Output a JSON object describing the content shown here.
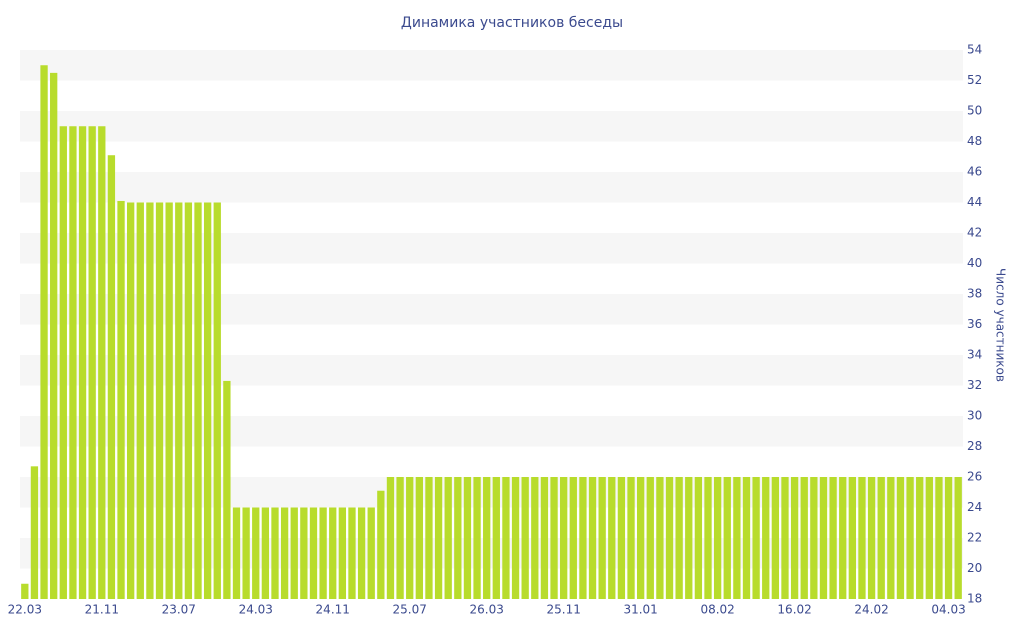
{
  "chart_data": {
    "type": "bar",
    "title": "Динамика участников беседы",
    "ylabel": "Число участников",
    "axis_side": "right",
    "grid": true,
    "color": "#b8dc2c",
    "ylim": [
      18,
      54
    ],
    "yticks": [
      18,
      20,
      22,
      24,
      26,
      28,
      30,
      32,
      34,
      36,
      38,
      40,
      42,
      44,
      46,
      48,
      50,
      52,
      54
    ],
    "categories": [
      "22.03",
      null,
      null,
      null,
      null,
      null,
      null,
      null,
      "21.11",
      null,
      null,
      null,
      null,
      null,
      null,
      null,
      "23.07",
      null,
      null,
      null,
      null,
      null,
      null,
      null,
      "24.03",
      null,
      null,
      null,
      null,
      null,
      null,
      null,
      "24.11",
      null,
      null,
      null,
      null,
      null,
      null,
      null,
      "25.07",
      null,
      null,
      null,
      null,
      null,
      null,
      null,
      "26.03",
      null,
      null,
      null,
      null,
      null,
      null,
      null,
      "25.11",
      null,
      null,
      null,
      null,
      null,
      null,
      null,
      "31.01",
      null,
      null,
      null,
      null,
      null,
      null,
      null,
      "08.02",
      null,
      null,
      null,
      null,
      null,
      null,
      null,
      "16.02",
      null,
      null,
      null,
      null,
      null,
      null,
      null,
      "24.02",
      null,
      null,
      null,
      null,
      null,
      null,
      null,
      "04.03",
      null
    ],
    "values": [
      19,
      26.7,
      53,
      52.5,
      49,
      49,
      49,
      49,
      49,
      47.1,
      44.1,
      44,
      44,
      44,
      44,
      44,
      44,
      44,
      44,
      44,
      44,
      32.3,
      24,
      24,
      24,
      24,
      24,
      24,
      24,
      24,
      24,
      24,
      24,
      24,
      24,
      24,
      24,
      25.1,
      26,
      26,
      26,
      26,
      26,
      26,
      26,
      26,
      26,
      26,
      26,
      26,
      26,
      26,
      26,
      26,
      26,
      26,
      26,
      26,
      26,
      26,
      26,
      26,
      26,
      26,
      26,
      26,
      26,
      26,
      26,
      26,
      26,
      26,
      26,
      26,
      26,
      26,
      26,
      26,
      26,
      26,
      26,
      26,
      26,
      26,
      26,
      26,
      26,
      26,
      26,
      26,
      26,
      26,
      26,
      26,
      26,
      26,
      26,
      26
    ]
  }
}
